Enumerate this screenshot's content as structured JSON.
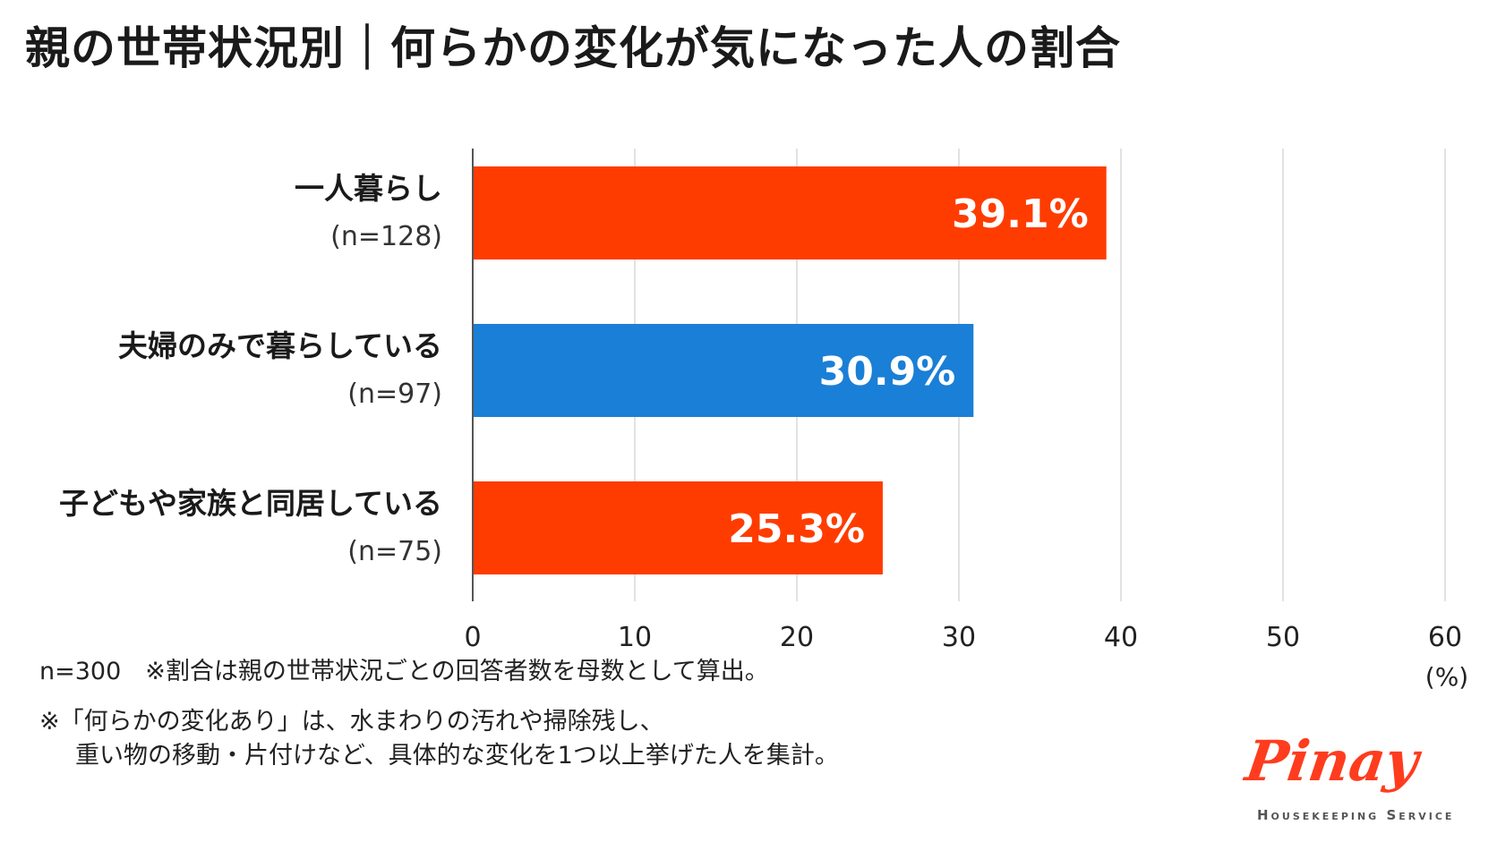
{
  "title": "親の世帯状況別｜何らかの変化が気になった人の割合",
  "chart_data": {
    "type": "bar",
    "orientation": "horizontal",
    "categories": [
      {
        "label": "一人暮らし",
        "n": "(n=128)"
      },
      {
        "label": "夫婦のみで暮らしている",
        "n": "(n=97)"
      },
      {
        "label": "子どもや家族と同居している",
        "n": "(n=75)"
      }
    ],
    "values": [
      39.1,
      30.9,
      25.3
    ],
    "value_labels": [
      "39.1%",
      "30.9%",
      "25.3%"
    ],
    "bar_colors": [
      "#ff3c00",
      "#1a7fd6",
      "#ff3c00"
    ],
    "xlim": [
      0,
      60
    ],
    "xticks": [
      "0",
      "10",
      "20",
      "30",
      "40",
      "50",
      "60"
    ],
    "xunit": "(%)",
    "grid": true
  },
  "footnotes": {
    "line1": "n=300　※割合は親の世帯状況ごとの回答者数を母数として算出。",
    "line2": "※「何らかの変化あり」は、水まわりの汚れや掃除残し、",
    "line3": "重い物の移動・片付けなど、具体的な変化を1つ以上挙げた人を集計。"
  },
  "logo": {
    "word": "Pinay",
    "sub": "Housekeeping Service",
    "color": "#ff3c1e"
  }
}
